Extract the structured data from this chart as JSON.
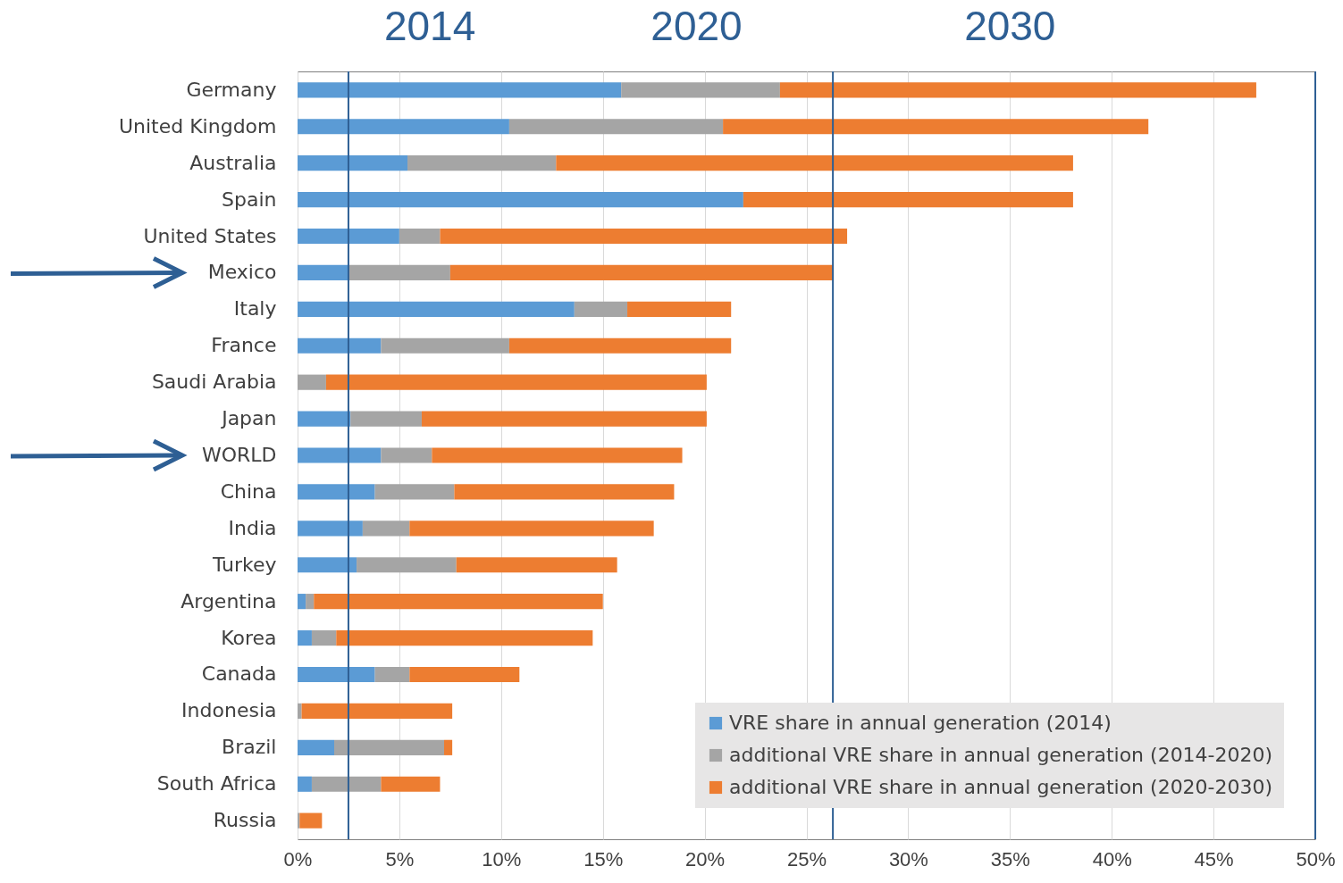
{
  "chart_data": {
    "type": "bar",
    "orientation": "horizontal",
    "stacked": true,
    "categories": [
      "Germany",
      "United Kingdom",
      "Australia",
      "Spain",
      "United States",
      "Mexico",
      "Italy",
      "France",
      "Saudi Arabia",
      "Japan",
      "WORLD",
      "China",
      "India",
      "Turkey",
      "Argentina",
      "Korea",
      "Canada",
      "Indonesia",
      "Brazil",
      "South Africa",
      "Russia"
    ],
    "series": [
      {
        "name": "VRE share in annual generation (2014)",
        "color": "#5b9bd5",
        "values": [
          15.9,
          10.4,
          5.4,
          21.9,
          5.0,
          2.5,
          13.6,
          4.1,
          0,
          2.6,
          4.1,
          3.8,
          3.2,
          2.9,
          0.4,
          0.7,
          3.8,
          0,
          1.8,
          0.7,
          0
        ]
      },
      {
        "name": "additional VRE share in annual generation (2014-2020)",
        "color": "#a5a5a5",
        "values": [
          7.8,
          10.5,
          7.3,
          0,
          2.0,
          5.0,
          2.6,
          6.3,
          1.4,
          3.5,
          2.5,
          3.9,
          2.3,
          4.9,
          0.4,
          1.2,
          1.7,
          0.2,
          5.4,
          3.4,
          0.1
        ]
      },
      {
        "name": "additional VRE share in annual generation (2020-2030)",
        "color": "#ed7d31",
        "values": [
          23.4,
          20.9,
          25.4,
          16.2,
          20.0,
          18.8,
          5.1,
          10.9,
          18.7,
          14.0,
          12.3,
          10.8,
          12.0,
          7.9,
          14.2,
          12.6,
          5.4,
          7.4,
          0.4,
          2.9,
          1.1
        ]
      }
    ],
    "xlim": [
      0,
      50
    ],
    "xticks": [
      {
        "value": 0,
        "label": "0%"
      },
      {
        "value": 5,
        "label": "5%"
      },
      {
        "value": 10,
        "label": "10%"
      },
      {
        "value": 15,
        "label": "15%"
      },
      {
        "value": 20,
        "label": "20%"
      },
      {
        "value": 25,
        "label": "25%"
      },
      {
        "value": 30,
        "label": "30%"
      },
      {
        "value": 35,
        "label": "35%"
      },
      {
        "value": 40,
        "label": "40%"
      },
      {
        "value": 45,
        "label": "45%"
      },
      {
        "value": 50,
        "label": "50%"
      }
    ],
    "grid": "x",
    "legend": "bottom right",
    "ref_lines": [
      {
        "axis": "x",
        "value": 2.5,
        "color": "#2e5f94"
      },
      {
        "axis": "x",
        "value": 26.3,
        "color": "#2e5f94"
      },
      {
        "axis": "x",
        "value": 50,
        "color": "#2e5f94"
      }
    ],
    "annotations": [
      "2014",
      "2020",
      "2030"
    ]
  }
}
